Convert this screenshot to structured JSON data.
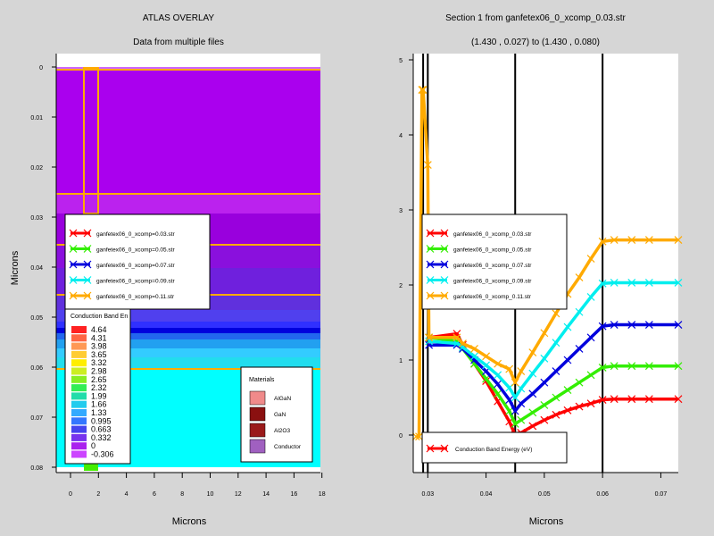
{
  "left": {
    "title": "ATLAS OVERLAY",
    "subtitle": "Data from multiple files",
    "xlabel": "Microns",
    "ylabel": "Microns",
    "xticks": [
      "0",
      "2",
      "4",
      "6",
      "8",
      "10",
      "12",
      "14",
      "16",
      "18"
    ],
    "yticks": [
      "0",
      "0.01",
      "0.02",
      "0.03",
      "0.04",
      "0.05",
      "0.06",
      "0.07",
      "0.08"
    ],
    "legend": [
      "ganfetex06_0_xcomp=0.03.str",
      "ganfetex06_0_xcomp=0.05.str",
      "ganfetex06_0_xcomp=0.07.str",
      "ganfetex06_0_xcomp=0.09.str",
      "ganfetex06_0_xcomp=0.11.str"
    ],
    "colorbar_title": "Conduction Band En",
    "colorbar_values": [
      "4.64",
      "4.31",
      "3.98",
      "3.65",
      "3.32",
      "2.98",
      "2.65",
      "2.32",
      "1.99",
      "1.66",
      "1.33",
      "0.995",
      "0.663",
      "0.332",
      "0",
      "-0.306"
    ],
    "materials_title": "Materials",
    "materials": [
      {
        "name": "AlGaN",
        "color": "#f08a8a"
      },
      {
        "name": "GaN",
        "color": "#8a1010"
      },
      {
        "name": "Al2O3",
        "color": "#9a1a1a"
      },
      {
        "name": "Conductor",
        "color": "#a060c0"
      }
    ]
  },
  "chart_data": {
    "type": "line",
    "title": "Section 1 from ganfetex06_0_xcomp_0.03.str",
    "subtitle": "(1.430 , 0.027) to (1.430 , 0.080)",
    "xlabel": "Microns",
    "ylabel": "",
    "xlim": [
      0.0275,
      0.073
    ],
    "ylim": [
      -0.1,
      5.1
    ],
    "xticks": [
      0.03,
      0.04,
      0.05,
      0.06,
      0.07
    ],
    "xtick_labels": [
      "0.03",
      "0.04",
      "0.05",
      "0.06",
      "0.07"
    ],
    "yticks": [
      0,
      1,
      2,
      3,
      4,
      5
    ],
    "grid": false,
    "vlines": [
      0.0292,
      0.03,
      0.045,
      0.06
    ],
    "legend_title_entry": "Conduction Band Energy (eV)",
    "series": [
      {
        "name": "ganfetex06_0_xcomp_0.03.str",
        "color": "#ff0000",
        "x": [
          0.0302,
          0.035,
          0.036,
          0.038,
          0.04,
          0.042,
          0.044,
          0.045,
          0.046,
          0.048,
          0.05,
          0.052,
          0.054,
          0.056,
          0.058,
          0.06,
          0.062,
          0.065,
          0.068,
          0.073
        ],
        "y": [
          1.3,
          1.35,
          1.2,
          0.95,
          0.72,
          0.45,
          0.18,
          0.0,
          0.03,
          0.12,
          0.2,
          0.27,
          0.33,
          0.38,
          0.42,
          0.47,
          0.48,
          0.48,
          0.48,
          0.48
        ]
      },
      {
        "name": "ganfetex06_0_xcomp_0.05.str",
        "color": "#33ee00",
        "x": [
          0.0302,
          0.035,
          0.036,
          0.038,
          0.04,
          0.042,
          0.044,
          0.045,
          0.046,
          0.048,
          0.05,
          0.052,
          0.054,
          0.056,
          0.058,
          0.06,
          0.062,
          0.065,
          0.068,
          0.073
        ],
        "y": [
          1.3,
          1.25,
          1.15,
          0.95,
          0.75,
          0.55,
          0.32,
          0.15,
          0.2,
          0.3,
          0.4,
          0.5,
          0.6,
          0.7,
          0.8,
          0.9,
          0.92,
          0.92,
          0.92,
          0.92
        ]
      },
      {
        "name": "ganfetex06_0_xcomp_0.07.str",
        "color": "#0000dd",
        "x": [
          0.0302,
          0.035,
          0.036,
          0.038,
          0.04,
          0.042,
          0.044,
          0.045,
          0.046,
          0.048,
          0.05,
          0.052,
          0.054,
          0.056,
          0.058,
          0.06,
          0.062,
          0.065,
          0.068,
          0.073
        ],
        "y": [
          1.2,
          1.2,
          1.15,
          1.0,
          0.85,
          0.68,
          0.47,
          0.32,
          0.42,
          0.55,
          0.7,
          0.85,
          1.0,
          1.15,
          1.3,
          1.45,
          1.47,
          1.47,
          1.47,
          1.47
        ]
      },
      {
        "name": "ganfetex06_0_xcomp_0.09.str",
        "color": "#00eeee",
        "x": [
          0.0302,
          0.035,
          0.036,
          0.038,
          0.04,
          0.042,
          0.044,
          0.045,
          0.046,
          0.048,
          0.05,
          0.052,
          0.054,
          0.056,
          0.058,
          0.06,
          0.062,
          0.065,
          0.068,
          0.073
        ],
        "y": [
          1.25,
          1.22,
          1.17,
          1.05,
          0.93,
          0.8,
          0.63,
          0.5,
          0.62,
          0.82,
          1.02,
          1.23,
          1.44,
          1.64,
          1.84,
          2.02,
          2.03,
          2.03,
          2.03,
          2.03
        ]
      },
      {
        "name": "ganfetex06_0_xcomp_0.11.str",
        "color": "#ffaa00",
        "x": [
          0.028,
          0.0285,
          0.029,
          0.0292,
          0.03,
          0.0302,
          0.035,
          0.036,
          0.038,
          0.04,
          0.042,
          0.044,
          0.045,
          0.046,
          0.048,
          0.05,
          0.052,
          0.054,
          0.056,
          0.058,
          0.06,
          0.062,
          0.065,
          0.068,
          0.073
        ],
        "y": [
          -0.02,
          -0.02,
          4.6,
          4.6,
          3.6,
          1.3,
          1.3,
          1.22,
          1.15,
          1.05,
          0.95,
          0.88,
          0.7,
          0.85,
          1.1,
          1.36,
          1.62,
          1.88,
          2.1,
          2.35,
          2.58,
          2.6,
          2.6,
          2.6,
          2.6
        ]
      }
    ]
  }
}
